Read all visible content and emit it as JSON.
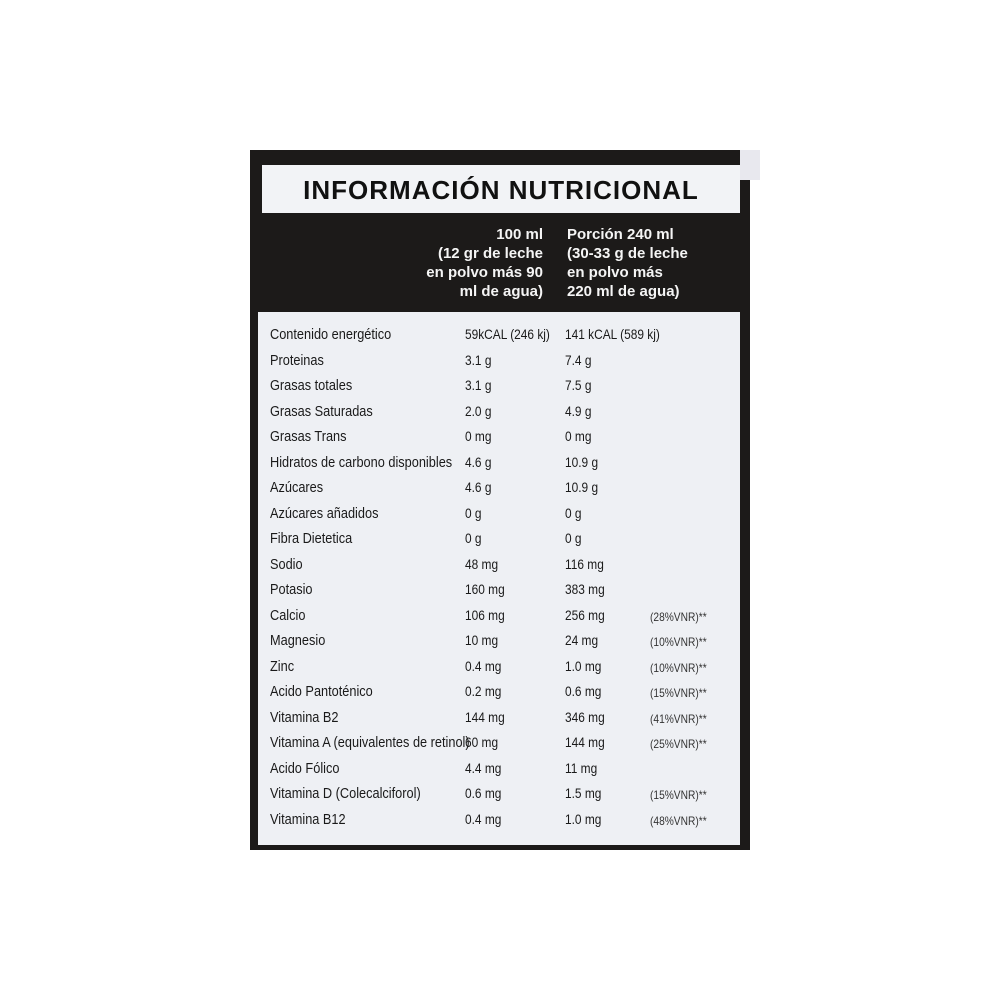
{
  "title": "INFORMACIÓN NUTRICIONAL",
  "columns": {
    "per100": [
      "100 ml",
      "(12 gr de leche",
      "en polvo más 90",
      "ml de agua)"
    ],
    "portion": [
      "Porción 240 ml",
      "(30-33 g de leche",
      "en polvo más",
      "220 ml de agua)"
    ]
  },
  "rows": [
    {
      "label": "Contenido energético",
      "per100": "59kCAL (246 kj)",
      "portion": "141 kCAL (589 kj)",
      "vnr": ""
    },
    {
      "label": "Proteinas",
      "per100": "3.1 g",
      "portion": "7.4 g",
      "vnr": ""
    },
    {
      "label": "Grasas totales",
      "per100": "3.1 g",
      "portion": "7.5 g",
      "vnr": ""
    },
    {
      "label": "Grasas Saturadas",
      "per100": "2.0 g",
      "portion": "4.9 g",
      "vnr": ""
    },
    {
      "label": "Grasas Trans",
      "per100": "0 mg",
      "portion": "0 mg",
      "vnr": ""
    },
    {
      "label": "Hidratos de carbono disponibles",
      "per100": "4.6 g",
      "portion": "10.9 g",
      "vnr": ""
    },
    {
      "label": "Azúcares",
      "per100": "4.6 g",
      "portion": "10.9 g",
      "vnr": ""
    },
    {
      "label": "Azúcares añadidos",
      "per100": "0 g",
      "portion": "0 g",
      "vnr": ""
    },
    {
      "label": "Fibra Dietetica",
      "per100": "0 g",
      "portion": "0 g",
      "vnr": ""
    },
    {
      "label": "Sodio",
      "per100": "48 mg",
      "portion": "116 mg",
      "vnr": ""
    },
    {
      "label": "Potasio",
      "per100": "160 mg",
      "portion": "383 mg",
      "vnr": ""
    },
    {
      "label": "Calcio",
      "per100": "106 mg",
      "portion": "256 mg",
      "vnr": "(28%VNR)**"
    },
    {
      "label": "Magnesio",
      "per100": "10 mg",
      "portion": "24 mg",
      "vnr": "(10%VNR)**"
    },
    {
      "label": "Zinc",
      "per100": "0.4 mg",
      "portion": "1.0 mg",
      "vnr": "(10%VNR)**"
    },
    {
      "label": "Acido Pantoténico",
      "per100": "0.2 mg",
      "portion": "0.6 mg",
      "vnr": "(15%VNR)**"
    },
    {
      "label": "Vitamina B2",
      "per100": "144 mg",
      "portion": "346 mg",
      "vnr": "(41%VNR)**"
    },
    {
      "label": "Vitamina A (equivalentes de retinol)",
      "per100": "60 mg",
      "portion": "144 mg",
      "vnr": "(25%VNR)**"
    },
    {
      "label": "Acido Fólico",
      "per100": "4.4 mg",
      "portion": "11 mg",
      "vnr": ""
    },
    {
      "label": "Vitamina D (Colecalciforol)",
      "per100": "0.6 mg",
      "portion": "1.5 mg",
      "vnr": "(15%VNR)**"
    },
    {
      "label": "Vitamina B12",
      "per100": "0.4 mg",
      "portion": "1.0 mg",
      "vnr": "(48%VNR)**"
    }
  ]
}
